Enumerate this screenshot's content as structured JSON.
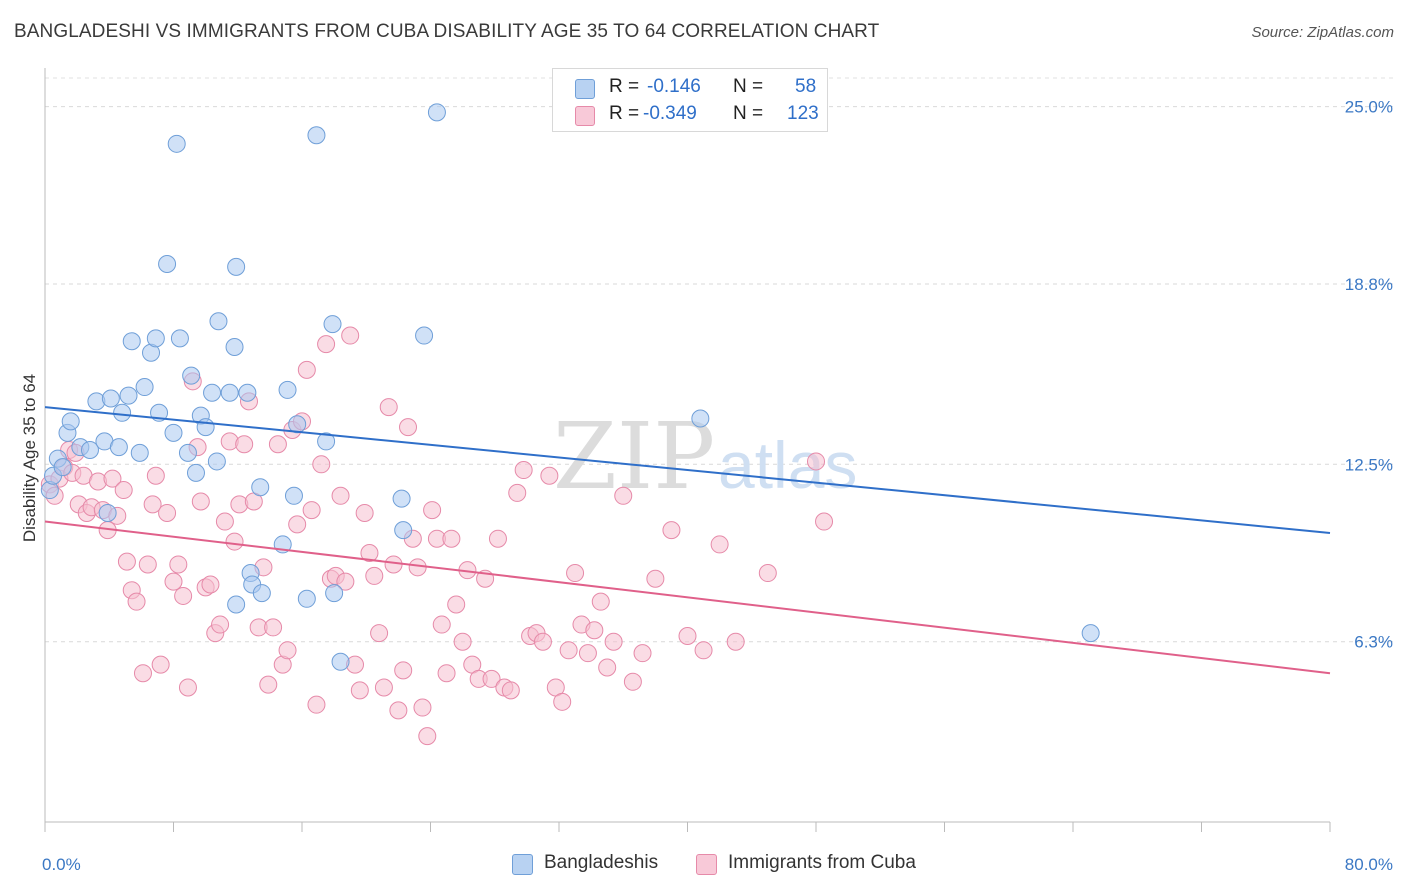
{
  "title": "BANGLADESHI VS IMMIGRANTS FROM CUBA DISABILITY AGE 35 TO 64 CORRELATION CHART",
  "source": "Source: ZipAtlas.com",
  "watermark": {
    "zip": "ZIP",
    "atlas": "atlas"
  },
  "legend": {
    "rows": [
      {
        "r_label": "R =",
        "r_value": "-0.146",
        "n_label": "N =",
        "n_value": "58"
      },
      {
        "r_label": "R =",
        "r_value": "-0.349",
        "n_label": "N =",
        "n_value": "123"
      }
    ]
  },
  "bottom_legend": [
    "Bangladeshis",
    "Immigrants from Cuba"
  ],
  "chart_data": {
    "type": "scatter",
    "title": "BANGLADESHI VS IMMIGRANTS FROM CUBA DISABILITY AGE 35 TO 64 CORRELATION CHART",
    "xlabel": "",
    "ylabel": "Disability Age 35 to 64",
    "xlim": [
      0,
      80
    ],
    "ylim": [
      0,
      26
    ],
    "x_tick_labels": [
      "0.0%",
      "80.0%"
    ],
    "y_ticks": [
      6.3,
      12.5,
      18.8,
      25.0
    ],
    "y_tick_labels": [
      "6.3%",
      "12.5%",
      "18.8%",
      "25.0%"
    ],
    "grid": "horizontal dashed",
    "legend_position": "top-center",
    "series": [
      {
        "name": "Bangladeshis",
        "color": "#a9c8f0",
        "stroke": "#6f9fd8",
        "trend_color": "#2f6fc9",
        "trend": {
          "x": [
            0,
            80
          ],
          "y": [
            14.5,
            10.1
          ]
        },
        "points": [
          [
            0.3,
            11.6
          ],
          [
            0.5,
            12.1
          ],
          [
            0.8,
            12.7
          ],
          [
            1.1,
            12.4
          ],
          [
            1.4,
            13.6
          ],
          [
            1.6,
            14.0
          ],
          [
            2.2,
            13.1
          ],
          [
            2.8,
            13.0
          ],
          [
            3.2,
            14.7
          ],
          [
            3.7,
            13.3
          ],
          [
            4.1,
            14.8
          ],
          [
            4.6,
            13.1
          ],
          [
            4.8,
            14.3
          ],
          [
            5.2,
            14.9
          ],
          [
            5.4,
            16.8
          ],
          [
            5.9,
            12.9
          ],
          [
            6.2,
            15.2
          ],
          [
            6.6,
            16.4
          ],
          [
            6.9,
            16.9
          ],
          [
            7.1,
            14.3
          ],
          [
            7.6,
            19.5
          ],
          [
            8.0,
            13.6
          ],
          [
            8.2,
            23.7
          ],
          [
            8.4,
            16.9
          ],
          [
            8.9,
            12.9
          ],
          [
            9.1,
            15.6
          ],
          [
            9.4,
            12.2
          ],
          [
            9.7,
            14.2
          ],
          [
            10.0,
            13.8
          ],
          [
            10.4,
            15.0
          ],
          [
            10.7,
            12.6
          ],
          [
            10.8,
            17.5
          ],
          [
            11.5,
            15.0
          ],
          [
            11.8,
            16.6
          ],
          [
            11.9,
            7.6
          ],
          [
            11.9,
            19.4
          ],
          [
            12.6,
            15.0
          ],
          [
            12.8,
            8.7
          ],
          [
            12.9,
            8.3
          ],
          [
            13.4,
            11.7
          ],
          [
            13.5,
            8.0
          ],
          [
            14.8,
            9.7
          ],
          [
            15.1,
            15.1
          ],
          [
            15.5,
            11.4
          ],
          [
            15.7,
            13.9
          ],
          [
            16.3,
            7.8
          ],
          [
            16.9,
            24.0
          ],
          [
            17.5,
            13.3
          ],
          [
            17.9,
            17.4
          ],
          [
            18.0,
            8.0
          ],
          [
            18.4,
            5.6
          ],
          [
            22.2,
            11.3
          ],
          [
            22.3,
            10.2
          ],
          [
            23.6,
            17.0
          ],
          [
            24.4,
            24.8
          ],
          [
            40.8,
            14.1
          ],
          [
            65.1,
            6.6
          ],
          [
            3.9,
            10.8
          ]
        ]
      },
      {
        "name": "Immigrants from Cuba",
        "color": "#f6bfd0",
        "stroke": "#e68aa9",
        "trend_color": "#e0608a",
        "trend": {
          "x": [
            0,
            80
          ],
          "y": [
            10.5,
            5.2
          ]
        },
        "points": [
          [
            0.3,
            11.8
          ],
          [
            0.6,
            11.4
          ],
          [
            0.9,
            12.0
          ],
          [
            1.2,
            12.4
          ],
          [
            1.5,
            13.0
          ],
          [
            1.7,
            12.2
          ],
          [
            1.9,
            12.9
          ],
          [
            2.1,
            11.1
          ],
          [
            2.4,
            12.1
          ],
          [
            2.6,
            10.8
          ],
          [
            2.9,
            11.0
          ],
          [
            3.3,
            11.9
          ],
          [
            3.6,
            10.9
          ],
          [
            3.9,
            10.2
          ],
          [
            4.2,
            12.0
          ],
          [
            4.5,
            10.7
          ],
          [
            4.9,
            11.6
          ],
          [
            5.1,
            9.1
          ],
          [
            5.4,
            8.1
          ],
          [
            5.7,
            7.7
          ],
          [
            6.1,
            5.2
          ],
          [
            6.4,
            9.0
          ],
          [
            6.7,
            11.1
          ],
          [
            6.9,
            12.1
          ],
          [
            7.2,
            5.5
          ],
          [
            7.6,
            10.8
          ],
          [
            8.0,
            8.4
          ],
          [
            8.3,
            9.0
          ],
          [
            8.6,
            7.9
          ],
          [
            8.9,
            4.7
          ],
          [
            9.2,
            15.4
          ],
          [
            9.5,
            13.1
          ],
          [
            9.7,
            11.2
          ],
          [
            10.0,
            8.2
          ],
          [
            10.3,
            8.3
          ],
          [
            10.6,
            6.6
          ],
          [
            10.9,
            6.9
          ],
          [
            11.2,
            10.5
          ],
          [
            11.5,
            13.3
          ],
          [
            11.8,
            9.8
          ],
          [
            12.1,
            11.1
          ],
          [
            12.4,
            13.2
          ],
          [
            12.7,
            14.7
          ],
          [
            13.0,
            11.2
          ],
          [
            13.3,
            6.8
          ],
          [
            13.6,
            8.9
          ],
          [
            13.9,
            4.8
          ],
          [
            14.2,
            6.8
          ],
          [
            14.5,
            13.2
          ],
          [
            14.8,
            5.5
          ],
          [
            15.1,
            6.0
          ],
          [
            15.4,
            13.7
          ],
          [
            15.7,
            10.4
          ],
          [
            16.0,
            14.0
          ],
          [
            16.3,
            15.8
          ],
          [
            16.6,
            10.9
          ],
          [
            16.9,
            4.1
          ],
          [
            17.2,
            12.5
          ],
          [
            17.5,
            16.7
          ],
          [
            17.8,
            8.5
          ],
          [
            18.1,
            8.6
          ],
          [
            18.4,
            11.4
          ],
          [
            18.7,
            8.4
          ],
          [
            19.0,
            17.0
          ],
          [
            19.3,
            5.5
          ],
          [
            19.6,
            4.6
          ],
          [
            19.9,
            10.8
          ],
          [
            20.2,
            9.4
          ],
          [
            20.5,
            8.6
          ],
          [
            20.8,
            6.6
          ],
          [
            21.1,
            4.7
          ],
          [
            21.4,
            14.5
          ],
          [
            21.7,
            9.0
          ],
          [
            22.0,
            3.9
          ],
          [
            22.3,
            5.3
          ],
          [
            22.6,
            13.8
          ],
          [
            22.9,
            9.9
          ],
          [
            23.2,
            8.9
          ],
          [
            23.5,
            4.0
          ],
          [
            23.8,
            3.0
          ],
          [
            24.1,
            10.9
          ],
          [
            24.4,
            9.9
          ],
          [
            24.7,
            6.9
          ],
          [
            25.0,
            5.2
          ],
          [
            25.3,
            9.9
          ],
          [
            25.6,
            7.6
          ],
          [
            26.0,
            6.3
          ],
          [
            26.3,
            8.8
          ],
          [
            26.6,
            5.5
          ],
          [
            27.0,
            5.0
          ],
          [
            27.4,
            8.5
          ],
          [
            27.8,
            5.0
          ],
          [
            28.2,
            9.9
          ],
          [
            28.6,
            4.7
          ],
          [
            29.0,
            4.6
          ],
          [
            29.4,
            11.5
          ],
          [
            29.8,
            12.3
          ],
          [
            30.2,
            6.5
          ],
          [
            30.6,
            6.6
          ],
          [
            31.0,
            6.3
          ],
          [
            31.4,
            12.1
          ],
          [
            31.8,
            4.7
          ],
          [
            32.2,
            4.2
          ],
          [
            32.6,
            6.0
          ],
          [
            33.0,
            8.7
          ],
          [
            33.4,
            6.9
          ],
          [
            33.8,
            5.9
          ],
          [
            34.2,
            6.7
          ],
          [
            34.6,
            7.7
          ],
          [
            35.0,
            5.4
          ],
          [
            35.4,
            6.3
          ],
          [
            36.0,
            11.4
          ],
          [
            36.6,
            4.9
          ],
          [
            37.2,
            5.9
          ],
          [
            38.0,
            8.5
          ],
          [
            39.0,
            10.2
          ],
          [
            40.0,
            6.5
          ],
          [
            41.0,
            6.0
          ],
          [
            42.0,
            9.7
          ],
          [
            43.0,
            6.3
          ],
          [
            45.0,
            8.7
          ],
          [
            48.0,
            12.6
          ],
          [
            48.5,
            10.5
          ]
        ]
      }
    ]
  }
}
